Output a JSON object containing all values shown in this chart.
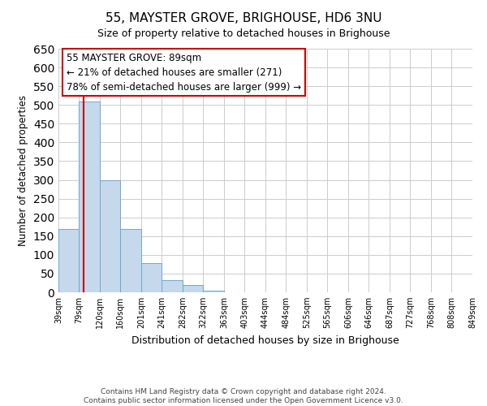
{
  "title": "55, MAYSTER GROVE, BRIGHOUSE, HD6 3NU",
  "subtitle": "Size of property relative to detached houses in Brighouse",
  "xlabel": "Distribution of detached houses by size in Brighouse",
  "ylabel": "Number of detached properties",
  "bar_edges": [
    39,
    79,
    120,
    160,
    201,
    241,
    282,
    322,
    363,
    403,
    444,
    484,
    525,
    565,
    606,
    646,
    687,
    727,
    768,
    808,
    849
  ],
  "bar_heights": [
    170,
    510,
    300,
    170,
    78,
    32,
    20,
    5,
    1,
    0,
    0,
    0,
    0,
    0,
    0,
    0,
    0,
    0,
    0,
    1
  ],
  "bar_color": "#c5d8ec",
  "bar_edgecolor": "#6fa8d0",
  "vline_x": 89,
  "vline_color": "#cc0000",
  "annotation_line1": "55 MAYSTER GROVE: 89sqm",
  "annotation_line2": "← 21% of detached houses are smaller (271)",
  "annotation_line3": "78% of semi-detached houses are larger (999) →",
  "ylim": [
    0,
    650
  ],
  "yticks": [
    0,
    50,
    100,
    150,
    200,
    250,
    300,
    350,
    400,
    450,
    500,
    550,
    600,
    650
  ],
  "footer_text": "Contains HM Land Registry data © Crown copyright and database right 2024.\nContains public sector information licensed under the Open Government Licence v3.0.",
  "bg_color": "#ffffff",
  "grid_color": "#cccccc"
}
